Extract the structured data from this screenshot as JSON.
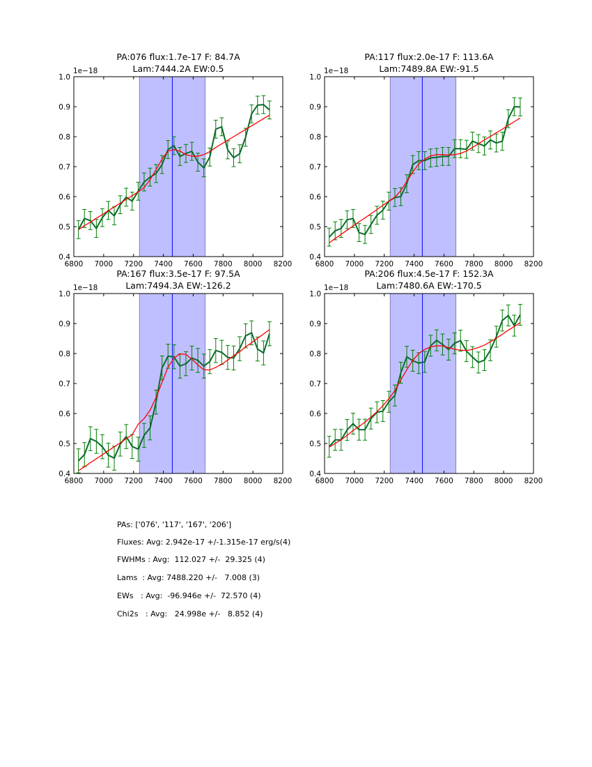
{
  "chart_data": [
    {
      "type": "line",
      "title_line1": "PA:076 flux:1.7e-17 F: 84.7A",
      "title_line2": "Lam:7444.2A EW:0.5",
      "offset_label": "1e−18",
      "xlim": [
        6800,
        8200
      ],
      "ylim": [
        0.4,
        1.0
      ],
      "xticks": [
        "6800",
        "7000",
        "7200",
        "7400",
        "7600",
        "7800",
        "8000",
        "8200"
      ],
      "yticks": [
        "0.4",
        "0.5",
        "0.6",
        "0.7",
        "0.8",
        "0.9",
        "1.0"
      ],
      "x_start": 6831,
      "x_step": 40,
      "y": [
        0.49,
        0.527,
        0.52,
        0.494,
        0.53,
        0.554,
        0.536,
        0.573,
        0.598,
        0.585,
        0.618,
        0.649,
        0.665,
        0.677,
        0.707,
        0.757,
        0.77,
        0.734,
        0.744,
        0.751,
        0.715,
        0.696,
        0.732,
        0.825,
        0.833,
        0.756,
        0.73,
        0.743,
        0.798,
        0.876,
        0.905,
        0.907,
        0.889
      ],
      "yerr": 0.03,
      "fit": [
        0.49,
        0.503,
        0.515,
        0.528,
        0.54,
        0.553,
        0.566,
        0.578,
        0.591,
        0.603,
        0.616,
        0.63,
        0.657,
        0.69,
        0.725,
        0.752,
        0.757,
        0.752,
        0.74,
        0.735,
        0.735,
        0.74,
        0.75,
        0.764,
        0.776,
        0.788,
        0.8,
        0.812,
        0.824,
        0.836,
        0.848,
        0.86,
        0.872
      ],
      "span": [
        7240,
        7680
      ],
      "center_line": 7460
    },
    {
      "type": "line",
      "title_line1": "PA:117 flux:2.0e-17 F: 113.6A",
      "title_line2": "Lam:7489.8A EW:-91.5",
      "offset_label": "1e−18",
      "xlim": [
        6800,
        8200
      ],
      "ylim": [
        0.4,
        1.0
      ],
      "xticks": [
        "6800",
        "7000",
        "7200",
        "7400",
        "7600",
        "7800",
        "8000",
        "8200"
      ],
      "yticks": [
        "0.4",
        "0.5",
        "0.6",
        "0.7",
        "0.8",
        "0.9",
        "1.0"
      ],
      "x_start": 6831,
      "x_step": 40,
      "y": [
        0.465,
        0.486,
        0.494,
        0.523,
        0.527,
        0.48,
        0.474,
        0.507,
        0.538,
        0.555,
        0.585,
        0.597,
        0.6,
        0.643,
        0.707,
        0.72,
        0.72,
        0.729,
        0.731,
        0.734,
        0.734,
        0.76,
        0.76,
        0.758,
        0.785,
        0.777,
        0.769,
        0.789,
        0.779,
        0.785,
        0.86,
        0.9,
        0.899
      ],
      "yerr": 0.03,
      "fit": [
        0.446,
        0.46,
        0.474,
        0.488,
        0.502,
        0.516,
        0.529,
        0.543,
        0.557,
        0.571,
        0.585,
        0.598,
        0.62,
        0.651,
        0.682,
        0.709,
        0.725,
        0.736,
        0.74,
        0.74,
        0.739,
        0.74,
        0.744,
        0.752,
        0.764,
        0.776,
        0.789,
        0.801,
        0.813,
        0.825,
        0.838,
        0.85,
        0.862
      ],
      "span": [
        7240,
        7680
      ],
      "center_line": 7455
    },
    {
      "type": "line",
      "title_line1": "PA:167 flux:3.5e-17 F: 97.5A",
      "title_line2": "Lam:7494.3A EW:-126.2",
      "offset_label": "1e−18",
      "xlim": [
        6800,
        8200
      ],
      "ylim": [
        0.4,
        1.0
      ],
      "xticks": [
        "6800",
        "7000",
        "7200",
        "7400",
        "7600",
        "7800",
        "8000",
        "8200"
      ],
      "yticks": [
        "0.4",
        "0.5",
        "0.6",
        "0.7",
        "0.8",
        "0.9",
        "1.0"
      ],
      "x_start": 6831,
      "x_step": 40,
      "y": [
        0.442,
        0.463,
        0.516,
        0.507,
        0.489,
        0.461,
        0.451,
        0.498,
        0.523,
        0.49,
        0.481,
        0.527,
        0.552,
        0.638,
        0.752,
        0.791,
        0.789,
        0.758,
        0.766,
        0.785,
        0.777,
        0.758,
        0.773,
        0.81,
        0.804,
        0.787,
        0.785,
        0.816,
        0.859,
        0.869,
        0.815,
        0.802,
        0.866
      ],
      "yerr": 0.04,
      "fit": [
        0.409,
        0.422,
        0.436,
        0.449,
        0.462,
        0.476,
        0.489,
        0.502,
        0.516,
        0.529,
        0.564,
        0.583,
        0.611,
        0.653,
        0.704,
        0.754,
        0.785,
        0.799,
        0.797,
        0.781,
        0.762,
        0.746,
        0.745,
        0.754,
        0.764,
        0.778,
        0.793,
        0.806,
        0.822,
        0.836,
        0.851,
        0.865,
        0.88
      ],
      "span": [
        7240,
        7680
      ],
      "center_line": 7460
    },
    {
      "type": "line",
      "title_line1": "PA:206 flux:4.5e-17 F: 152.3A",
      "title_line2": "Lam:7480.6A EW:-170.5",
      "offset_label": "1e−18",
      "xlim": [
        6800,
        8200
      ],
      "ylim": [
        0.4,
        1.0
      ],
      "xticks": [
        "6800",
        "7000",
        "7200",
        "7400",
        "7600",
        "7800",
        "8000",
        "8200"
      ],
      "yticks": [
        "0.4",
        "0.5",
        "0.6",
        "0.7",
        "0.8",
        "0.9",
        "1.0"
      ],
      "x_start": 6831,
      "x_step": 40,
      "y": [
        0.489,
        0.512,
        0.512,
        0.545,
        0.566,
        0.546,
        0.546,
        0.583,
        0.604,
        0.608,
        0.639,
        0.66,
        0.736,
        0.789,
        0.776,
        0.768,
        0.772,
        0.826,
        0.844,
        0.83,
        0.813,
        0.834,
        0.843,
        0.808,
        0.788,
        0.77,
        0.778,
        0.811,
        0.856,
        0.91,
        0.927,
        0.893,
        0.929
      ],
      "yerr": 0.035,
      "fit": [
        0.488,
        0.5,
        0.512,
        0.527,
        0.543,
        0.557,
        0.571,
        0.588,
        0.606,
        0.626,
        0.649,
        0.676,
        0.712,
        0.746,
        0.777,
        0.8,
        0.814,
        0.822,
        0.826,
        0.825,
        0.82,
        0.814,
        0.811,
        0.81,
        0.814,
        0.82,
        0.828,
        0.839,
        0.851,
        0.864,
        0.878,
        0.89,
        0.903
      ],
      "span": [
        7240,
        7680
      ],
      "center_line": 7456
    }
  ],
  "summary": [
    "PAs: ['076', '117', '167', '206']",
    "Fluxes: Avg: 2.942e-17 +/-1.315e-17 erg/s(4)",
    "FWHMs : Avg:  112.027 +/-  29.325 (4)",
    "Lams  : Avg: 7488.220 +/-   7.008 (3)",
    "EWs   : Avg:  -96.946e +/-  72.570 (4)",
    "Chi2s   : Avg:   24.998e +/-   8.852 (4)"
  ],
  "colors": {
    "data": "#0b6b2b",
    "errbar": "#008000",
    "fit": "#ff0000",
    "span": "#bfbfff",
    "center": "#0000ff"
  }
}
